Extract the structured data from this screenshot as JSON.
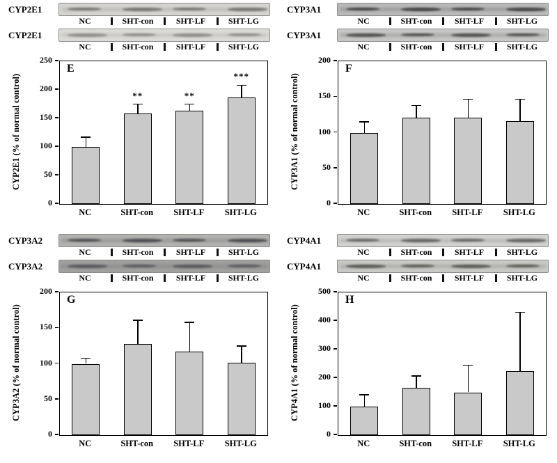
{
  "figure": {
    "bar_fill": "#c9c9c9",
    "bar_border": "#000000",
    "panels": [
      {
        "letter": "E",
        "blots": [
          {
            "label": "CYP2E1",
            "bg": "#d6d4d0",
            "band": "#6f6e6a",
            "lanes": [
              "NC",
              "SHT-con",
              "SHT-LF",
              "SHT-LG"
            ]
          },
          {
            "label": "CYP2E1",
            "bg": "#dcdad6",
            "band": "#8a8884",
            "lanes": [
              "NC",
              "SHT-con",
              "SHT-LF",
              "SHT-LG"
            ]
          }
        ]
      },
      {
        "letter": "F",
        "blots": [
          {
            "label": "CYP3A1",
            "bg": "#b9b9b9",
            "band": "#3c3c3c",
            "lanes": [
              "NC",
              "SHT-con",
              "SHT-LF",
              "SHT-LG"
            ]
          },
          {
            "label": "CYP3A1",
            "bg": "#c6c6c4",
            "band": "#4a4a48",
            "lanes": [
              "NC",
              "SHT-con",
              "SHT-LF",
              "SHT-LG"
            ]
          }
        ]
      },
      {
        "letter": "G",
        "blots": [
          {
            "label": "CYP3A2",
            "bg": "#b2b2b0",
            "band": "#46464a",
            "lanes": [
              "NC",
              "SHT-con",
              "SHT-LF",
              "SHT-LG"
            ]
          },
          {
            "label": "CYP3A2",
            "bg": "#a0a09e",
            "band": "#54545a",
            "lanes": [
              "NC",
              "SHT-con",
              "SHT-LF",
              "SHT-LG"
            ]
          }
        ]
      },
      {
        "letter": "H",
        "blots": [
          {
            "label": "CYP4A1",
            "bg": "#d2d2d0",
            "band": "#5e5e5e",
            "lanes": [
              "NC",
              "SHT-con",
              "SHT-LF",
              "SHT-LG"
            ]
          },
          {
            "label": "CYP4A1",
            "bg": "#c9c9c7",
            "band": "#54534e",
            "lanes": [
              "NC",
              "SHT-con",
              "SHT-LF",
              "SHT-LG"
            ]
          }
        ]
      }
    ]
  },
  "chart_data": [
    {
      "type": "bar",
      "panel": "E",
      "ylabel": "CYP2E1 (% of normal control)",
      "categories": [
        "NC",
        "SHT-con",
        "SHT-LF",
        "SHT-LG"
      ],
      "values": [
        100,
        159,
        163,
        186
      ],
      "errors": [
        17,
        16,
        12,
        22
      ],
      "significance": [
        "",
        "**",
        "**",
        "***"
      ],
      "ylim": [
        0,
        250
      ],
      "yticks": [
        0,
        50,
        100,
        150,
        200,
        250
      ]
    },
    {
      "type": "bar",
      "panel": "F",
      "ylabel": "CYP3A1 (% of normal control)",
      "categories": [
        "NC",
        "SHT-con",
        "SHT-LF",
        "SHT-LG"
      ],
      "values": [
        100,
        121,
        121,
        116
      ],
      "errors": [
        15,
        17,
        26,
        31
      ],
      "significance": [
        "",
        "",
        "",
        ""
      ],
      "ylim": [
        0,
        200
      ],
      "yticks": [
        0,
        50,
        100,
        150,
        200
      ]
    },
    {
      "type": "bar",
      "panel": "G",
      "ylabel": "CYP3A2 (% of normal control)",
      "categories": [
        "NC",
        "SHT-con",
        "SHT-LF",
        "SHT-LG"
      ],
      "values": [
        100,
        128,
        117,
        101
      ],
      "errors": [
        8,
        33,
        41,
        24
      ],
      "significance": [
        "",
        "",
        "",
        ""
      ],
      "ylim": [
        0,
        200
      ],
      "yticks": [
        0,
        50,
        100,
        150,
        200
      ]
    },
    {
      "type": "bar",
      "panel": "H",
      "ylabel": "CYP4A1 (% of normal control)",
      "categories": [
        "NC",
        "SHT-con",
        "SHT-LF",
        "SHT-LG"
      ],
      "values": [
        100,
        165,
        150,
        225
      ],
      "errors": [
        42,
        42,
        95,
        205
      ],
      "significance": [
        "",
        "",
        "",
        ""
      ],
      "ylim": [
        0,
        500
      ],
      "yticks": [
        0,
        100,
        200,
        300,
        400,
        500
      ]
    }
  ]
}
